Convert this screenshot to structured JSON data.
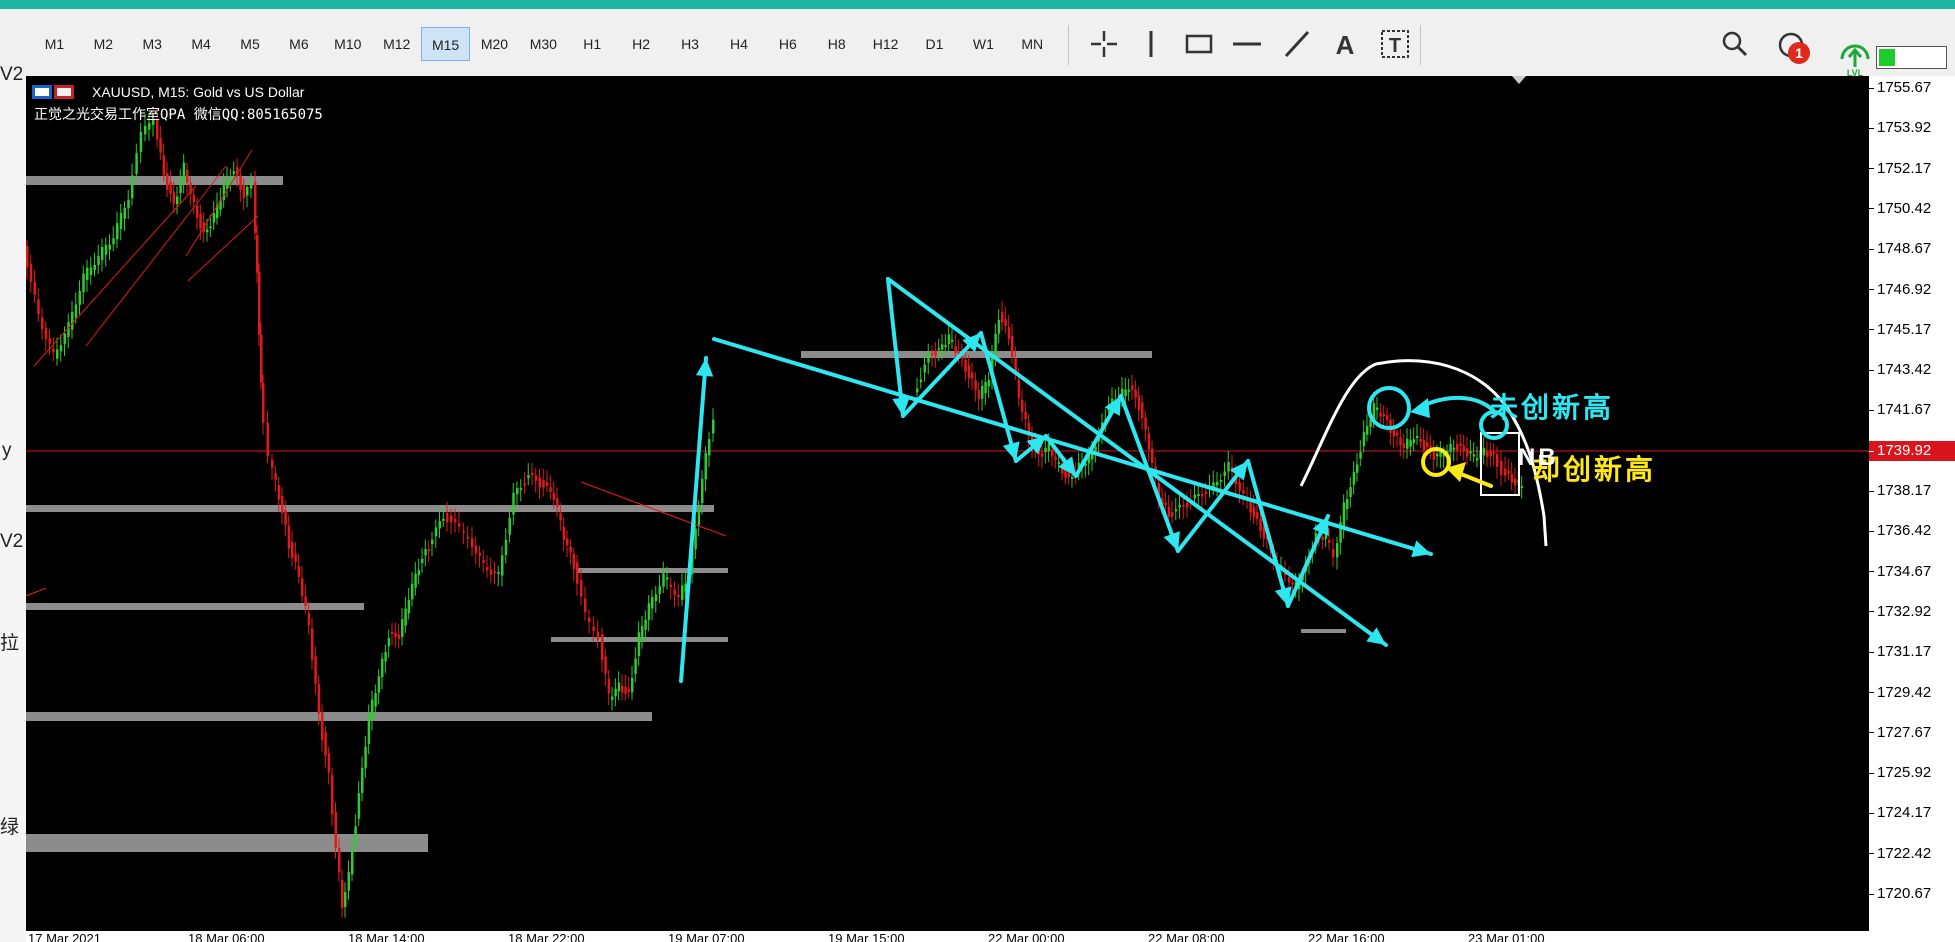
{
  "toolbar": {
    "timeframes": [
      "M1",
      "M2",
      "M3",
      "M4",
      "M5",
      "M6",
      "M10",
      "M12",
      "M15",
      "M20",
      "M30",
      "H1",
      "H2",
      "H3",
      "H4",
      "H6",
      "H8",
      "H12",
      "D1",
      "W1",
      "MN"
    ],
    "active_timeframe": "M15",
    "drawing_tools": [
      "crosshair-icon",
      "vertical-line-icon",
      "rectangle-icon",
      "horizontal-line-icon",
      "trendline-icon",
      "text-icon",
      "text-label-icon"
    ],
    "notification_count": "1",
    "lvl_label": "LVL"
  },
  "left_panel": {
    "fragments": [
      "V2",
      "y",
      "V2",
      "拉",
      "绿"
    ]
  },
  "chart": {
    "symbol_line": "XAUUSD, M15:  Gold vs US Dollar",
    "subtitle_line": "正觉之光交易工作室QPA  微信QQ:805165075",
    "annotation_cyan": "未创新高",
    "annotation_yellow": "却创新高",
    "annotation_white": "NB",
    "colors": {
      "background": "#000000",
      "bull": "#2ecc2e",
      "bear": "#e01a1a",
      "annotation_cyan": "#2ee6f0",
      "annotation_yellow": "#ffe81a",
      "support_band": "#8c8c8c",
      "current_price_line": "#d9141c"
    }
  },
  "price_axis": {
    "ticks": [
      "1755.67",
      "1753.92",
      "1752.17",
      "1750.42",
      "1748.67",
      "1746.92",
      "1745.17",
      "1743.42",
      "1741.67",
      "1739.92",
      "1738.17",
      "1736.42",
      "1734.67",
      "1732.92",
      "1731.17",
      "1729.42",
      "1727.67",
      "1725.92",
      "1724.17",
      "1722.42",
      "1720.67"
    ],
    "current_price": "1739.92"
  },
  "time_axis": {
    "labels": [
      "17 Mar 2021",
      "18 Mar 06:00",
      "18 Mar 14:00",
      "18 Mar 22:00",
      "19 Mar 07:00",
      "19 Mar 15:00",
      "22 Mar 00:00",
      "22 Mar 08:00",
      "22 Mar 16:00",
      "23 Mar 01:00"
    ]
  }
}
